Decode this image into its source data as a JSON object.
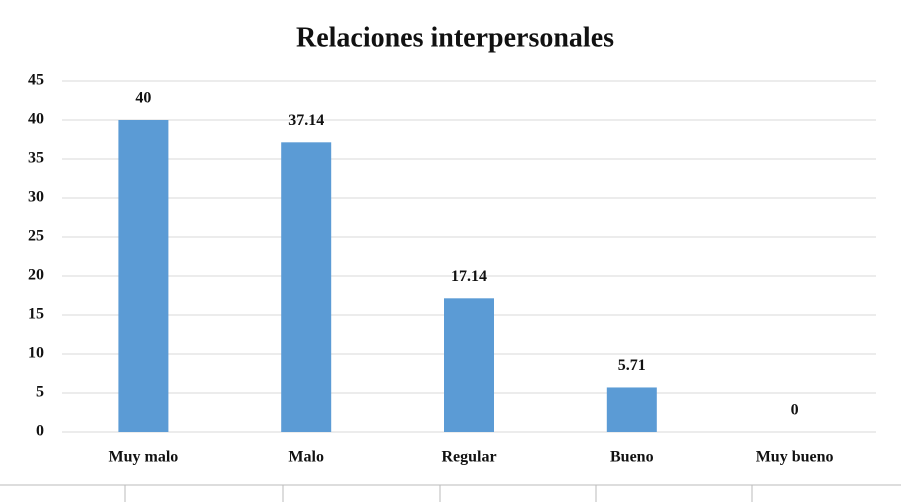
{
  "chart_data": {
    "type": "bar",
    "title": "Relaciones interpersonales",
    "categories": [
      "Muy malo",
      "Malo",
      "Regular",
      "Bueno",
      "Muy bueno"
    ],
    "values": [
      40,
      37.14,
      17.14,
      5.71,
      0
    ],
    "color": "#5b9bd5",
    "ylim": [
      0,
      45
    ],
    "yticks": [
      0,
      5,
      10,
      15,
      20,
      25,
      30,
      35,
      40,
      45
    ],
    "grid": true
  }
}
